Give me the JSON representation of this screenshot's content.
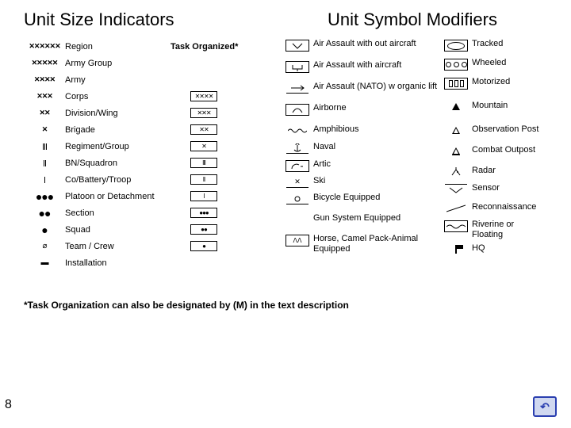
{
  "title_left": "Unit Size Indicators",
  "title_right": "Unit Symbol Modifiers",
  "task_header": "Task Organized*",
  "indicators": [
    {
      "sym": "✕✕✕✕✕✕",
      "label": "Region"
    },
    {
      "sym": "✕✕✕✕✕",
      "label": "Army Group"
    },
    {
      "sym": "✕✕✕✕",
      "label": "Army"
    },
    {
      "sym": "✕✕✕",
      "label": "Corps"
    },
    {
      "sym": "✕✕",
      "label": " Division/Wing"
    },
    {
      "sym": "✕",
      "label": " Brigade"
    },
    {
      "sym": "III",
      "label": "Regiment/Group"
    },
    {
      "sym": "II",
      "label": "BN/Squadron"
    },
    {
      "sym": "I",
      "label": "Co/Battery/Troop"
    },
    {
      "sym": "●●●",
      "label": "Platoon or Detachment"
    },
    {
      "sym": "●●",
      "label": "Section"
    },
    {
      "sym": "●",
      "label": "Squad"
    },
    {
      "sym": "⌀",
      "label": "Team / Crew"
    },
    {
      "sym": "▬",
      "label": "Installation"
    }
  ],
  "task_boxes": [
    "",
    "",
    "✕✕✕✕",
    "✕✕✕",
    "✕✕",
    "✕",
    "III",
    "II",
    "I",
    "●●●",
    "●●",
    "●"
  ],
  "mods_left": [
    {
      "g": "v",
      "label": "Air Assault with out aircraft"
    },
    {
      "g": "cup",
      "label": "Air Assault with aircraft"
    },
    {
      "g": "vline",
      "label": "Air Assault (NATO) w organic lift"
    },
    {
      "g": "para",
      "label": "Airborne"
    },
    {
      "g": "wave",
      "label": "Amphibious"
    },
    {
      "g": "anchor",
      "label": "Naval"
    },
    {
      "g": "artic",
      "label": "Artic"
    },
    {
      "g": "ski",
      "label": "Ski"
    },
    {
      "g": "bike",
      "label": "Bicycle Equipped"
    },
    {
      "g": "",
      "label": "Gun System Equipped"
    },
    {
      "g": "horse",
      "label": "Horse, Camel Pack-Animal Equipped"
    }
  ],
  "mods_right": [
    {
      "g": "ellipse",
      "label": "Tracked"
    },
    {
      "g": "wheels",
      "label": "Wheeled"
    },
    {
      "g": "motor",
      "label": "Motorized"
    },
    {
      "g": "mtn",
      "label": "Mountain"
    },
    {
      "g": "obs",
      "label": "Observation Post"
    },
    {
      "g": "combat",
      "label": "Combat Outpost"
    },
    {
      "g": "radar",
      "label": "Radar"
    },
    {
      "g": "sensor",
      "label": "Sensor"
    },
    {
      "g": "recon",
      "label": "Reconnaissance"
    },
    {
      "g": "river",
      "label": "Riverine or Floating"
    },
    {
      "g": "hq",
      "label": "HQ"
    }
  ],
  "footnote": "*Task Organization can also be designated by (M) in the text description",
  "page": "8"
}
